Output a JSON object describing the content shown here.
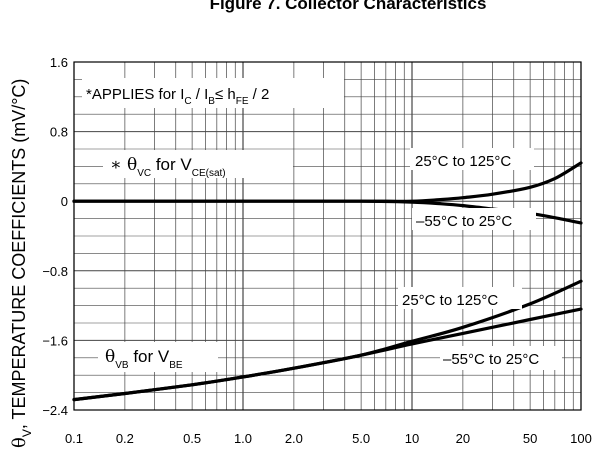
{
  "chart_data": {
    "type": "line",
    "title": "Figure 7. Collector Characteristics",
    "ylabel": "θV, TEMPERATURE COEFFICIENTS (mV/°C)",
    "ylabel_sym": "θ",
    "ylabel_sub": "V",
    "ylabel_text": ", TEMPERATURE COEFFICIENTS (mV/°C)",
    "x_scale": "log",
    "xlim": [
      0.1,
      100
    ],
    "ylim": [
      -2.4,
      1.6
    ],
    "grid": true,
    "x_tick_labels": [
      "0.1",
      "0.2",
      "0.5",
      "1.0",
      "2.0",
      "5.0",
      "10",
      "20",
      "50",
      "100"
    ],
    "x_tick_values": [
      0.1,
      0.2,
      0.5,
      1.0,
      2.0,
      5.0,
      10,
      20,
      50,
      100
    ],
    "y_tick_labels": [
      "1.6",
      "0.8",
      "0",
      "−0.8",
      "−1.6",
      "−2.4"
    ],
    "y_tick_values": [
      1.6,
      0.8,
      0,
      -0.8,
      -1.6,
      -2.4
    ],
    "annotations": {
      "applies": {
        "a": "*APPLIES for I",
        "b": "C",
        "c": " / I",
        "d": "B",
        "e": "≤ h",
        "f": "FE",
        "g": " / 2"
      },
      "theta_vc": {
        "a": "∗ θ",
        "b": "VC",
        "c": " for V",
        "d": "CE(sat)"
      },
      "theta_vb": {
        "a": "θ",
        "b": "VB",
        "c": " for V",
        "d": "BE"
      },
      "vc_hot": "25°C to 125°C",
      "vc_cold": "–55°C to 25°C",
      "vb_hot": "25°C to 125°C",
      "vb_cold": "–55°C to 25°C"
    },
    "series": [
      {
        "id": "vc_hot",
        "x": [
          0.1,
          1,
          5,
          10,
          15,
          20,
          30,
          50,
          70,
          100
        ],
        "y": [
          0,
          0,
          0,
          0,
          0.02,
          0.04,
          0.08,
          0.16,
          0.26,
          0.44
        ]
      },
      {
        "id": "vc_cold",
        "x": [
          0.1,
          1,
          5,
          10,
          15,
          20,
          30,
          50,
          70,
          100
        ],
        "y": [
          0,
          0,
          0,
          -0.01,
          -0.03,
          -0.05,
          -0.09,
          -0.14,
          -0.19,
          -0.25
        ]
      },
      {
        "id": "vb_hot",
        "x": [
          0.1,
          0.2,
          0.5,
          1,
          2,
          5,
          10,
          20,
          50,
          100
        ],
        "y": [
          -2.28,
          -2.21,
          -2.11,
          -2.02,
          -1.92,
          -1.77,
          -1.61,
          -1.45,
          -1.18,
          -0.92
        ]
      },
      {
        "id": "vb_cold",
        "x": [
          0.1,
          0.2,
          0.5,
          1,
          2,
          5,
          10,
          20,
          50,
          100
        ],
        "y": [
          -2.28,
          -2.21,
          -2.11,
          -2.02,
          -1.92,
          -1.77,
          -1.64,
          -1.52,
          -1.36,
          -1.24
        ]
      }
    ]
  }
}
